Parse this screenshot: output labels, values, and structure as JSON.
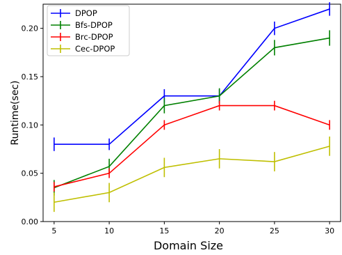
{
  "chart_data": {
    "type": "line",
    "title": "",
    "xlabel": "Domain Size",
    "ylabel": "Runtime(sec)",
    "x": [
      5,
      10,
      15,
      20,
      25,
      30
    ],
    "xlim": [
      4,
      31
    ],
    "ylim": [
      0,
      0.225
    ],
    "xticks": [
      "5",
      "10",
      "15",
      "20",
      "25",
      "30"
    ],
    "yticks": [
      "0.00",
      "0.05",
      "0.10",
      "0.15",
      "0.20"
    ],
    "legend_position": "top-left",
    "grid": false,
    "series": [
      {
        "name": "DPOP",
        "color": "#0000ff",
        "values": [
          0.08,
          0.08,
          0.13,
          0.13,
          0.2,
          0.22
        ],
        "errors": [
          0.007,
          0.006,
          0.007,
          0.007,
          0.007,
          0.007
        ]
      },
      {
        "name": "Bfs-DPOP",
        "color": "#008000",
        "values": [
          0.035,
          0.057,
          0.12,
          0.13,
          0.18,
          0.19
        ],
        "errors": [
          0.008,
          0.008,
          0.008,
          0.008,
          0.008,
          0.008
        ]
      },
      {
        "name": "Brc-DPOP",
        "color": "#ff0000",
        "values": [
          0.036,
          0.05,
          0.1,
          0.12,
          0.12,
          0.1
        ],
        "errors": [
          0.005,
          0.005,
          0.005,
          0.005,
          0.005,
          0.005
        ]
      },
      {
        "name": "Cec-DPOP",
        "color": "#bfbf00",
        "values": [
          0.02,
          0.03,
          0.056,
          0.065,
          0.062,
          0.078
        ],
        "errors": [
          0.01,
          0.01,
          0.01,
          0.01,
          0.01,
          0.01
        ]
      }
    ]
  }
}
